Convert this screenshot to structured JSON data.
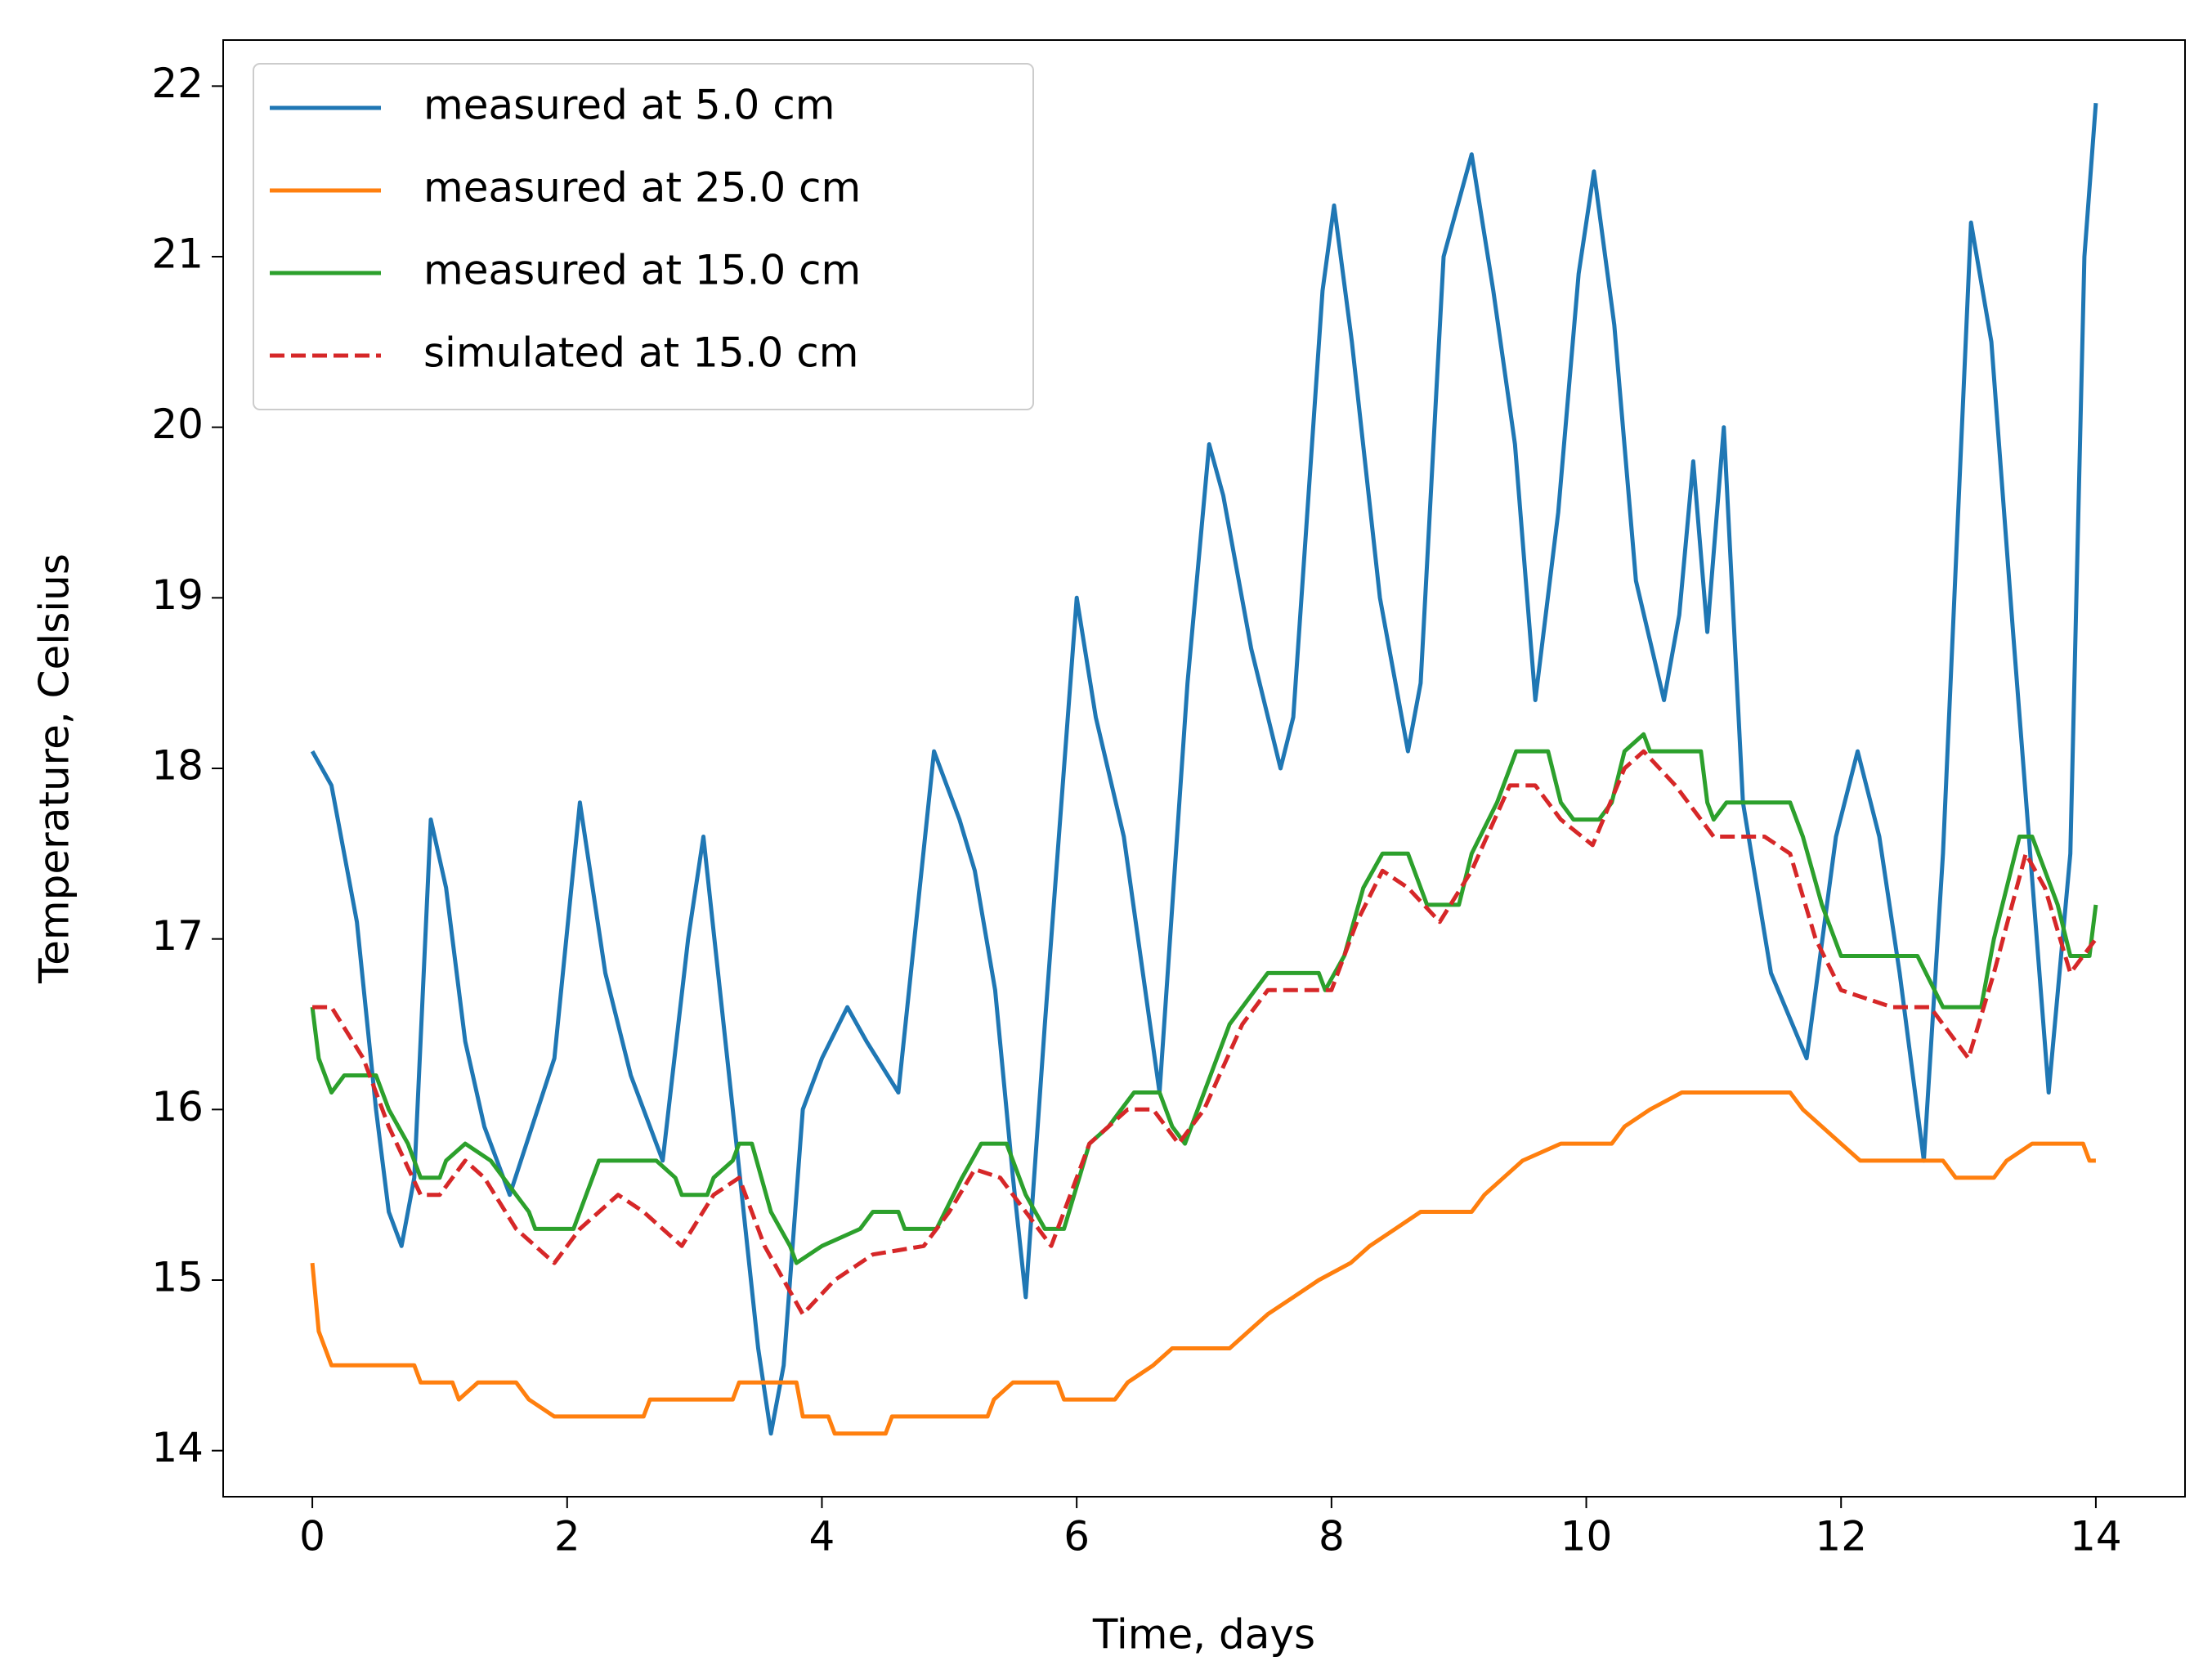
{
  "chart_data": {
    "type": "line",
    "xlabel": "Time, days",
    "ylabel": "Temperature, Celsius",
    "xlim": [
      -0.7,
      14.7
    ],
    "ylim": [
      13.73,
      22.27
    ],
    "xticks": [
      0,
      2,
      4,
      6,
      8,
      10,
      12,
      14
    ],
    "yticks": [
      14,
      15,
      16,
      17,
      18,
      19,
      20,
      21,
      22
    ],
    "grid": false,
    "legend": "upper left",
    "series": [
      {
        "name": "measured at 5.0 cm",
        "color": "#1f77b4",
        "linestyle": "solid",
        "x": [
          0,
          0.15,
          0.35,
          0.5,
          0.6,
          0.7,
          0.8,
          0.93,
          1.05,
          1.2,
          1.35,
          1.55,
          1.9,
          2.1,
          2.3,
          2.5,
          2.75,
          2.95,
          3.07,
          3.3,
          3.5,
          3.6,
          3.7,
          3.85,
          4.0,
          4.2,
          4.35,
          4.6,
          4.88,
          5.08,
          5.2,
          5.36,
          5.5,
          5.6,
          5.75,
          6.0,
          6.15,
          6.37,
          6.65,
          6.87,
          7.04,
          7.15,
          7.37,
          7.6,
          7.7,
          7.93,
          8.02,
          8.16,
          8.38,
          8.6,
          8.7,
          8.88,
          9.1,
          9.27,
          9.44,
          9.6,
          9.78,
          9.94,
          10.06,
          10.22,
          10.39,
          10.61,
          10.73,
          10.84,
          10.95,
          11.08,
          11.23,
          11.45,
          11.73,
          11.96,
          12.13,
          12.3,
          12.46,
          12.65,
          12.8,
          13.02,
          13.18,
          13.35,
          13.63,
          13.8,
          13.91,
          14.0
        ],
        "values": [
          18.1,
          17.9,
          17.1,
          16.0,
          15.4,
          15.2,
          15.6,
          17.7,
          17.3,
          16.4,
          15.9,
          15.5,
          16.3,
          17.8,
          16.8,
          16.2,
          15.7,
          17.0,
          17.6,
          16.0,
          14.6,
          14.1,
          14.5,
          16.0,
          16.3,
          16.6,
          16.4,
          16.1,
          18.1,
          17.7,
          17.4,
          16.7,
          15.6,
          14.9,
          16.5,
          19.0,
          18.3,
          17.6,
          16.1,
          18.5,
          19.9,
          19.6,
          18.7,
          18.0,
          18.3,
          20.8,
          21.3,
          20.5,
          19.0,
          18.1,
          18.5,
          21.0,
          21.6,
          20.8,
          19.9,
          18.4,
          19.5,
          20.9,
          21.5,
          20.6,
          19.1,
          18.4,
          18.9,
          19.8,
          18.8,
          20.0,
          17.8,
          16.8,
          16.3,
          17.6,
          18.1,
          17.6,
          16.8,
          15.7,
          17.5,
          21.2,
          20.5,
          18.8,
          16.1,
          17.5,
          21.0,
          21.9
        ]
      },
      {
        "name": "measured at 25.0 cm",
        "color": "#ff7f0e",
        "linestyle": "solid",
        "x": [
          0,
          0.05,
          0.15,
          0.8,
          0.85,
          1.1,
          1.15,
          1.3,
          1.6,
          1.7,
          1.9,
          2.6,
          2.65,
          3.3,
          3.35,
          3.8,
          3.85,
          4.05,
          4.1,
          4.5,
          4.55,
          5.3,
          5.35,
          5.5,
          5.85,
          5.9,
          6.3,
          6.4,
          6.6,
          6.75,
          7.2,
          7.35,
          7.5,
          7.7,
          7.9,
          8.15,
          8.3,
          8.5,
          8.7,
          9.1,
          9.2,
          9.35,
          9.5,
          9.8,
          10.2,
          10.3,
          10.5,
          10.75,
          11.6,
          11.7,
          11.85,
          12.0,
          12.15,
          12.8,
          12.9,
          13.2,
          13.3,
          13.5,
          13.9,
          13.95,
          14.0
        ],
        "values": [
          15.1,
          14.7,
          14.5,
          14.5,
          14.4,
          14.4,
          14.3,
          14.4,
          14.4,
          14.3,
          14.2,
          14.2,
          14.3,
          14.3,
          14.4,
          14.4,
          14.2,
          14.2,
          14.1,
          14.1,
          14.2,
          14.2,
          14.3,
          14.4,
          14.4,
          14.3,
          14.3,
          14.4,
          14.5,
          14.6,
          14.6,
          14.7,
          14.8,
          14.9,
          15.0,
          15.1,
          15.2,
          15.3,
          15.4,
          15.4,
          15.5,
          15.6,
          15.7,
          15.8,
          15.8,
          15.9,
          16.0,
          16.1,
          16.1,
          16.0,
          15.9,
          15.8,
          15.7,
          15.7,
          15.6,
          15.6,
          15.7,
          15.8,
          15.8,
          15.7,
          15.7
        ]
      },
      {
        "name": "measured at 15.0 cm",
        "color": "#2ca02c",
        "linestyle": "solid",
        "x": [
          0,
          0.05,
          0.15,
          0.25,
          0.5,
          0.6,
          0.75,
          0.85,
          1.0,
          1.05,
          1.2,
          1.4,
          1.6,
          1.7,
          1.75,
          2.05,
          2.2,
          2.25,
          2.7,
          2.85,
          2.9,
          3.1,
          3.15,
          3.3,
          3.35,
          3.45,
          3.6,
          3.75,
          3.8,
          4.0,
          4.3,
          4.4,
          4.6,
          4.65,
          4.9,
          5.1,
          5.25,
          5.45,
          5.6,
          5.75,
          5.9,
          6.1,
          6.25,
          6.35,
          6.45,
          6.65,
          6.75,
          6.85,
          7.0,
          7.2,
          7.4,
          7.5,
          7.9,
          7.95,
          8.1,
          8.25,
          8.4,
          8.6,
          8.75,
          9.0,
          9.1,
          9.3,
          9.4,
          9.45,
          9.7,
          9.8,
          9.9,
          10.1,
          10.2,
          10.3,
          10.45,
          10.5,
          10.9,
          10.95,
          11.0,
          11.1,
          11.6,
          11.7,
          11.85,
          12.0,
          12.6,
          12.8,
          13.1,
          13.2,
          13.4,
          13.5,
          13.7,
          13.8,
          13.95,
          14.0
        ],
        "values": [
          16.6,
          16.3,
          16.1,
          16.2,
          16.2,
          16.0,
          15.8,
          15.6,
          15.6,
          15.7,
          15.8,
          15.7,
          15.5,
          15.4,
          15.3,
          15.3,
          15.6,
          15.7,
          15.7,
          15.6,
          15.5,
          15.5,
          15.6,
          15.7,
          15.8,
          15.8,
          15.4,
          15.2,
          15.1,
          15.2,
          15.3,
          15.4,
          15.4,
          15.3,
          15.3,
          15.6,
          15.8,
          15.8,
          15.5,
          15.3,
          15.3,
          15.8,
          15.9,
          16.0,
          16.1,
          16.1,
          15.9,
          15.8,
          16.1,
          16.5,
          16.7,
          16.8,
          16.8,
          16.7,
          16.9,
          17.3,
          17.5,
          17.5,
          17.2,
          17.2,
          17.5,
          17.8,
          18.0,
          18.1,
          18.1,
          17.8,
          17.7,
          17.7,
          17.8,
          18.1,
          18.2,
          18.1,
          18.1,
          17.8,
          17.7,
          17.8,
          17.8,
          17.6,
          17.2,
          16.9,
          16.9,
          16.6,
          16.6,
          17.0,
          17.6,
          17.6,
          17.2,
          16.9,
          16.9,
          17.2
        ]
      },
      {
        "name": "simulated at 15.0 cm",
        "color": "#d62728",
        "linestyle": "dashed",
        "x": [
          0,
          0.15,
          0.4,
          0.6,
          0.85,
          1.0,
          1.2,
          1.35,
          1.6,
          1.9,
          2.1,
          2.4,
          2.6,
          2.9,
          3.15,
          3.35,
          3.55,
          3.85,
          4.1,
          4.4,
          4.8,
          5.0,
          5.2,
          5.4,
          5.6,
          5.8,
          6.1,
          6.4,
          6.6,
          6.8,
          7.0,
          7.3,
          7.5,
          7.8,
          8.0,
          8.2,
          8.4,
          8.6,
          8.85,
          9.1,
          9.4,
          9.6,
          9.8,
          10.05,
          10.3,
          10.45,
          10.7,
          11.0,
          11.4,
          11.6,
          11.8,
          12.0,
          12.4,
          12.7,
          13.0,
          13.2,
          13.45,
          13.6,
          13.8,
          14.0
        ],
        "values": [
          16.6,
          16.6,
          16.3,
          15.9,
          15.5,
          15.5,
          15.7,
          15.6,
          15.3,
          15.1,
          15.3,
          15.5,
          15.4,
          15.2,
          15.5,
          15.6,
          15.2,
          14.8,
          15.0,
          15.15,
          15.2,
          15.4,
          15.65,
          15.6,
          15.4,
          15.2,
          15.8,
          16.0,
          16.0,
          15.8,
          16.0,
          16.5,
          16.7,
          16.7,
          16.7,
          17.1,
          17.4,
          17.3,
          17.1,
          17.4,
          17.9,
          17.9,
          17.7,
          17.55,
          18.0,
          18.1,
          17.9,
          17.6,
          17.6,
          17.5,
          17.0,
          16.7,
          16.6,
          16.6,
          16.3,
          16.8,
          17.5,
          17.3,
          16.8,
          17.0
        ]
      }
    ]
  }
}
